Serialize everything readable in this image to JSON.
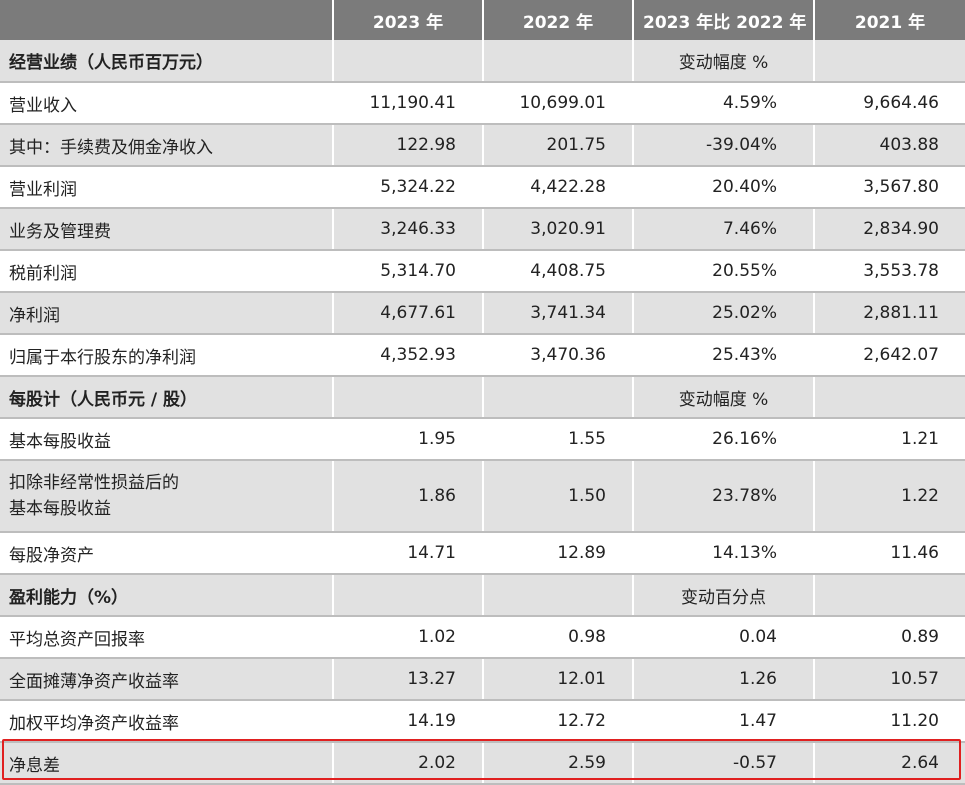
{
  "header": {
    "col_label": "",
    "col_2023": "2023 年",
    "col_2022": "2022 年",
    "col_change": "2023 年比 2022 年",
    "col_2021": "2021 年"
  },
  "sections": {
    "operating": {
      "title": "经营业绩（人民币百万元）",
      "change_note": "变动幅度 %"
    },
    "per_share": {
      "title": "每股计（人民币元 / 股）",
      "change_note": "变动幅度 %"
    },
    "profitability": {
      "title": "盈利能力（%）",
      "change_note": "变动百分点"
    }
  },
  "rows": {
    "operating_income": {
      "label": "营业收入",
      "y2023": "11,190.41",
      "y2022": "10,699.01",
      "change": "4.59%",
      "y2021": "9,664.46"
    },
    "fee_income": {
      "label": "其中：手续费及佣金净收入",
      "y2023": "122.98",
      "y2022": "201.75",
      "change": "-39.04%",
      "y2021": "403.88"
    },
    "operating_profit": {
      "label": "营业利润",
      "y2023": "5,324.22",
      "y2022": "4,422.28",
      "change": "20.40%",
      "y2021": "3,567.80"
    },
    "admin_expense": {
      "label": "业务及管理费",
      "y2023": "3,246.33",
      "y2022": "3,020.91",
      "change": "7.46%",
      "y2021": "2,834.90"
    },
    "pretax_profit": {
      "label": "税前利润",
      "y2023": "5,314.70",
      "y2022": "4,408.75",
      "change": "20.55%",
      "y2021": "3,553.78"
    },
    "net_profit": {
      "label": "净利润",
      "y2023": "4,677.61",
      "y2022": "3,741.34",
      "change": "25.02%",
      "y2021": "2,881.11"
    },
    "net_profit_parent": {
      "label": "归属于本行股东的净利润",
      "y2023": "4,352.93",
      "y2022": "3,470.36",
      "change": "25.43%",
      "y2021": "2,642.07"
    },
    "basic_eps": {
      "label": "基本每股收益",
      "y2023": "1.95",
      "y2022": "1.55",
      "change": "26.16%",
      "y2021": "1.21"
    },
    "adjusted_eps": {
      "label_line1": "扣除非经常性损益后的",
      "label_line2": "基本每股收益",
      "y2023": "1.86",
      "y2022": "1.50",
      "change": "23.78%",
      "y2021": "1.22"
    },
    "nav_per_share": {
      "label": "每股净资产",
      "y2023": "14.71",
      "y2022": "12.89",
      "change": "14.13%",
      "y2021": "11.46"
    },
    "roa": {
      "label": "平均总资产回报率",
      "y2023": "1.02",
      "y2022": "0.98",
      "change": "0.04",
      "y2021": "0.89"
    },
    "roe_diluted": {
      "label": "全面摊薄净资产收益率",
      "y2023": "13.27",
      "y2022": "12.01",
      "change": "1.26",
      "y2021": "10.57"
    },
    "roe_weighted": {
      "label": "加权平均净资产收益率",
      "y2023": "14.19",
      "y2022": "12.72",
      "change": "1.47",
      "y2021": "11.20"
    },
    "nim": {
      "label": "净息差",
      "y2023": "2.02",
      "y2022": "2.59",
      "change": "-0.57",
      "y2021": "2.64"
    }
  },
  "colors": {
    "header_bg": "#7b7b7b",
    "shade_bg": "#e1e1e1",
    "highlight_border": "#e02020"
  }
}
